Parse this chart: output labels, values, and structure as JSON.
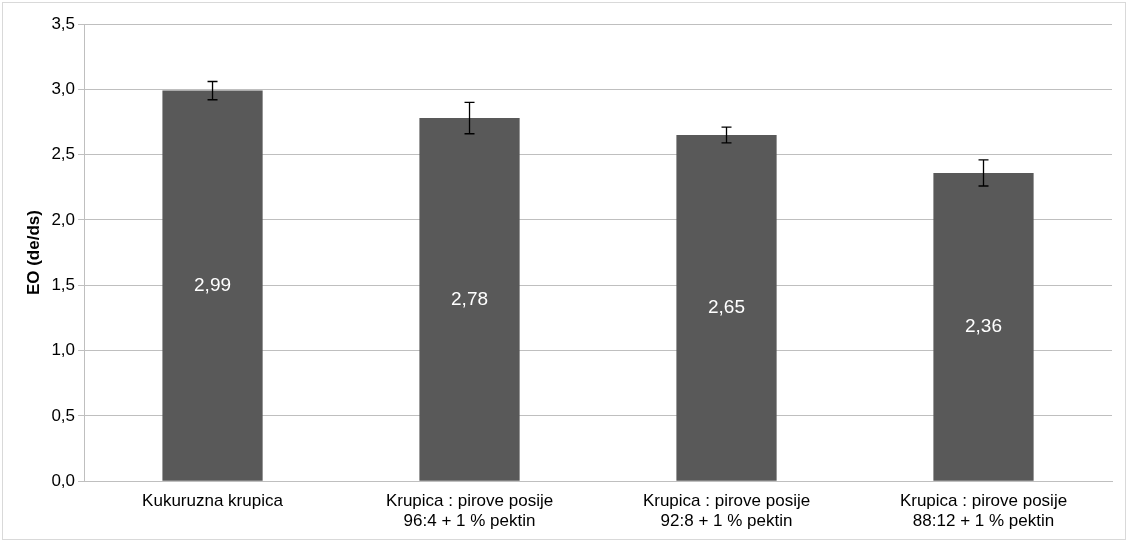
{
  "chart_data": {
    "type": "bar",
    "ylabel": "EO (de/ds)",
    "categories": [
      "Kukuruzna krupica",
      "Krupica : pirove posije 96:4 + 1 % pektin",
      "Krupica : pirove posije 92:8 + 1 % pektin",
      "Krupica : pirove posije 88:12 + 1 % pektin"
    ],
    "values": [
      2.99,
      2.78,
      2.65,
      2.36
    ],
    "errors": [
      0.07,
      0.12,
      0.06,
      0.1
    ],
    "color": "#595959",
    "ylim": [
      0,
      3.5
    ],
    "yticks": [
      {
        "value": 0,
        "label": "0,0"
      },
      {
        "value": 0.5,
        "label": "0,5"
      },
      {
        "value": 1,
        "label": "1,0"
      },
      {
        "value": 1.5,
        "label": "1,5"
      },
      {
        "value": 2,
        "label": "2,0"
      },
      {
        "value": 2.5,
        "label": "2,5"
      },
      {
        "value": 3,
        "label": "3,0"
      },
      {
        "value": 3.5,
        "label": "3,5"
      }
    ],
    "value_labels": [
      "2,99",
      "2,78",
      "2,65",
      "2,36"
    ],
    "grid": "y",
    "legend": false
  }
}
